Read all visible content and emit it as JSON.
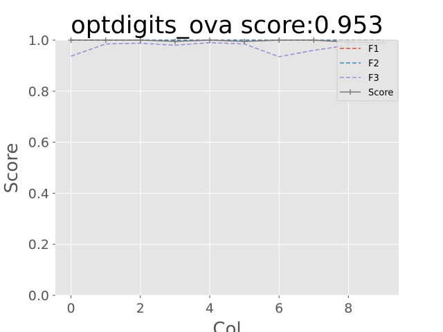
{
  "chart_data": {
    "type": "line",
    "title": "optdigits_ova score:0.953",
    "xlabel": "Col",
    "ylabel": "Score",
    "xlim": [
      -0.45,
      9.45
    ],
    "ylim": [
      0.0,
      1.0
    ],
    "x_ticks": [
      0,
      2,
      4,
      6,
      8
    ],
    "y_ticks": [
      0.0,
      0.2,
      0.4,
      0.6,
      0.8,
      1.0
    ],
    "grid": true,
    "legend_position": "top-right",
    "x": [
      0,
      1,
      2,
      3,
      4,
      5,
      6,
      7,
      8,
      9
    ],
    "series": [
      {
        "name": "F1",
        "color": "#e24a33",
        "style": "dashed",
        "values": [
          1.0,
          1.0,
          1.0,
          1.0,
          1.0,
          1.0,
          1.0,
          1.0,
          1.0,
          1.0
        ]
      },
      {
        "name": "F2",
        "color": "#348abd",
        "style": "dashed",
        "values": [
          1.0,
          1.0,
          1.0,
          1.0,
          1.0,
          1.0,
          1.0,
          1.0,
          1.0,
          1.0
        ]
      },
      {
        "name": "F3",
        "color": "#988ed5",
        "style": "dashed",
        "values": [
          0.937,
          0.985,
          0.988,
          0.98,
          0.99,
          0.985,
          0.935,
          0.96,
          0.98,
          0.985
        ]
      },
      {
        "name": "Score",
        "color": "#777777",
        "style": "solid",
        "marker": "+",
        "values": [
          1.0,
          1.0,
          1.0,
          0.995,
          1.0,
          0.995,
          1.0,
          1.0,
          0.992,
          0.99
        ]
      }
    ]
  }
}
